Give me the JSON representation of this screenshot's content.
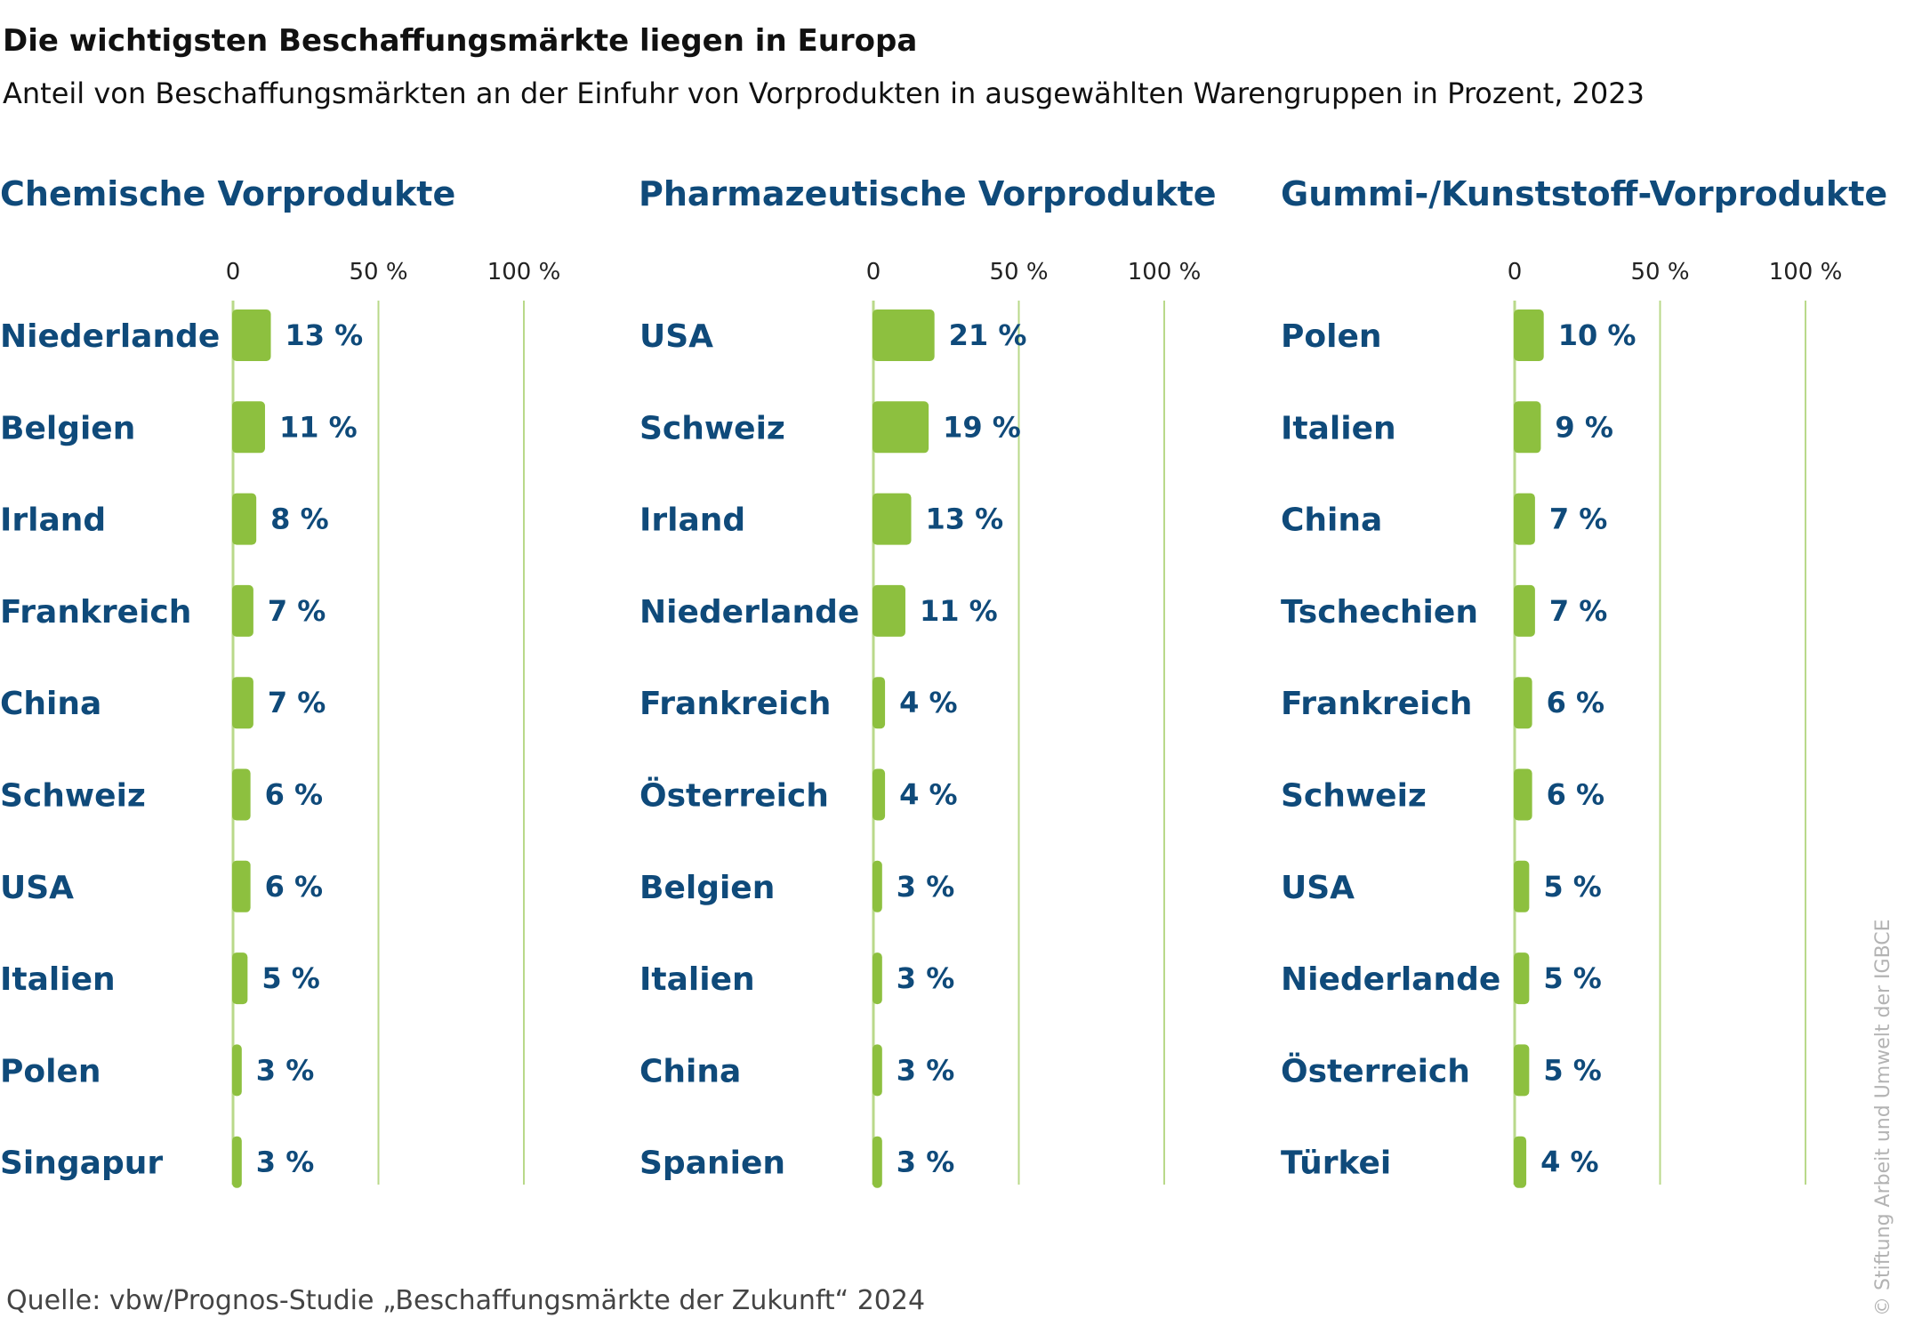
{
  "title": "Die wichtigsten Beschaffungsmärkte liegen in Europa",
  "subtitle": "Anteil von Beschaffungsmärkten an der Einfuhr von Vorprodukten in ausgewählten Warengruppen in Prozent, 2023",
  "source": "Quelle: vbw/Prognos-Studie „Beschaffungsmärkte der Zukunft“ 2024",
  "copyright": "© Stiftung Arbeit und Umwelt der IGBCE",
  "colors": {
    "bar": "#8dc03f",
    "gridline": "#b9d98a",
    "label": "#0f4a7a",
    "value": "#0f4a7a",
    "title": "#111111"
  },
  "chart_data": [
    {
      "type": "bar",
      "orientation": "horizontal",
      "title": "Chemische Vorprodukte",
      "categories": [
        "Niederlande",
        "Belgien",
        "Irland",
        "Frankreich",
        "China",
        "Schweiz",
        "USA",
        "Italien",
        "Polen",
        "Singapur"
      ],
      "values": [
        13,
        11,
        8,
        7,
        7,
        6,
        6,
        5,
        3,
        3
      ],
      "value_labels": [
        "13 %",
        "11 %",
        "8 %",
        "7 %",
        "7 %",
        "6 %",
        "6 %",
        "5 %",
        "3 %",
        "3 %"
      ],
      "ticks": [
        0,
        50,
        100
      ],
      "tick_labels": [
        "0",
        "50 %",
        "100 %"
      ],
      "xlim": [
        0,
        100
      ],
      "grid": true
    },
    {
      "type": "bar",
      "orientation": "horizontal",
      "title": "Pharmazeutische Vorprodukte",
      "categories": [
        "USA",
        "Schweiz",
        "Irland",
        "Niederlande",
        "Frankreich",
        "Österreich",
        "Belgien",
        "Italien",
        "China",
        "Spanien"
      ],
      "values": [
        21,
        19,
        13,
        11,
        4,
        4,
        3,
        3,
        3,
        3
      ],
      "value_labels": [
        "21 %",
        "19 %",
        "13 %",
        "11 %",
        "4 %",
        "4 %",
        "3 %",
        "3 %",
        "3 %",
        "3 %"
      ],
      "ticks": [
        0,
        50,
        100
      ],
      "tick_labels": [
        "0",
        "50 %",
        "100 %"
      ],
      "xlim": [
        0,
        100
      ],
      "grid": true
    },
    {
      "type": "bar",
      "orientation": "horizontal",
      "title": "Gummi-/Kunststoff-Vorprodukte",
      "categories": [
        "Polen",
        "Italien",
        "China",
        "Tschechien",
        "Frankreich",
        "Schweiz",
        "USA",
        "Niederlande",
        "Österreich",
        "Türkei"
      ],
      "values": [
        10,
        9,
        7,
        7,
        6,
        6,
        5,
        5,
        5,
        4
      ],
      "value_labels": [
        "10 %",
        "9 %",
        "7 %",
        "7 %",
        "6 %",
        "6 %",
        "5 %",
        "5 %",
        "5 %",
        "4 %"
      ],
      "ticks": [
        0,
        50,
        100
      ],
      "tick_labels": [
        "0",
        "50 %",
        "100 %"
      ],
      "xlim": [
        0,
        100
      ],
      "grid": true
    }
  ]
}
